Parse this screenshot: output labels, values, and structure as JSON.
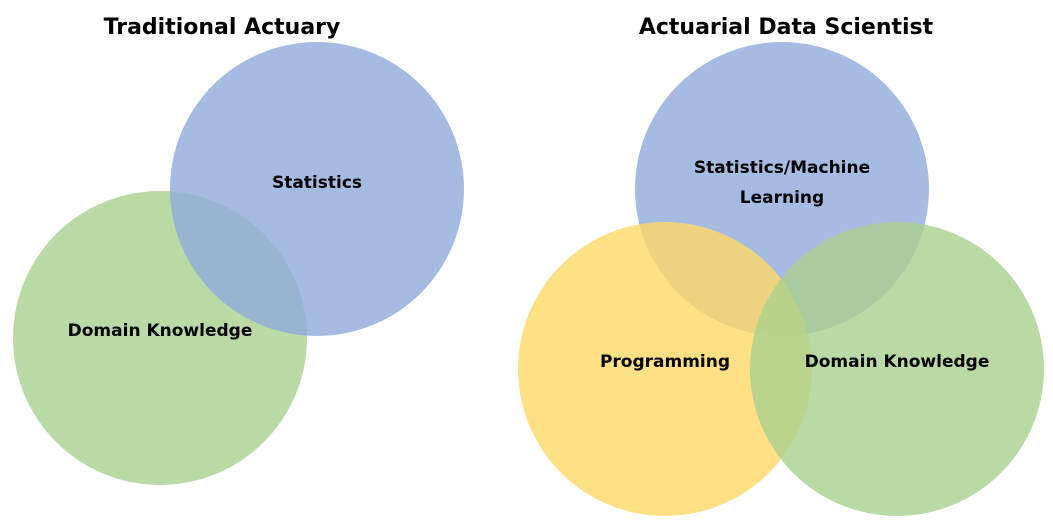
{
  "colors": {
    "statistics": "#8eaadb",
    "domain": "#a9d18e",
    "programming": "#ffd966"
  },
  "left_diagram": {
    "title": "Traditional Actuary",
    "circles": {
      "statistics": "Statistics",
      "domain": "Domain Knowledge"
    }
  },
  "right_diagram": {
    "title": "Actuarial Data Scientist",
    "circles": {
      "statistics_line1": "Statistics/Machine",
      "statistics_line2": "Learning",
      "programming": "Programming",
      "domain": "Domain Knowledge"
    }
  }
}
